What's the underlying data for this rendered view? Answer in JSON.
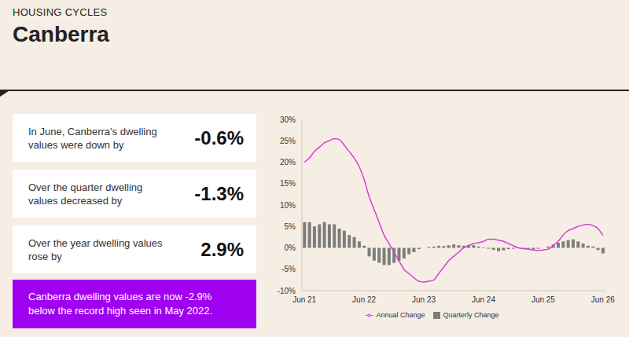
{
  "header": {
    "section": "HOUSING CYCLES",
    "title": "Canberra"
  },
  "stats": [
    {
      "label": "In June, Canberra's dwelling values were down by",
      "value": "-0.6%"
    },
    {
      "label": "Over the quarter dwelling values decreased by",
      "value": "-1.3%"
    },
    {
      "label": "Over the year dwelling values rose by",
      "value": "2.9%"
    }
  ],
  "callout": "Canberra dwelling values are now -2.9% below the record high seen in May 2022.",
  "chart_data": {
    "type": "bar",
    "categories": [
      "Jun 21",
      null,
      null,
      null,
      null,
      null,
      null,
      null,
      null,
      null,
      null,
      null,
      "Jun 22",
      null,
      null,
      null,
      null,
      null,
      null,
      null,
      null,
      null,
      null,
      null,
      "Jun 23",
      null,
      null,
      null,
      null,
      null,
      null,
      null,
      null,
      null,
      null,
      null,
      "Jun 24",
      null,
      null,
      null,
      null,
      null,
      null,
      null,
      null,
      null,
      null,
      null,
      "Jun 25",
      null,
      null,
      null,
      null,
      null,
      null,
      null,
      null,
      null,
      null,
      null,
      "Jun 26"
    ],
    "series": [
      {
        "name": "Quarterly Change",
        "type": "bar",
        "color": "#7d7d7d",
        "values": [
          6,
          6,
          5,
          5.5,
          6,
          5.5,
          5.5,
          4.5,
          4,
          3,
          2.5,
          1.5,
          0.5,
          -2,
          -3,
          -3.5,
          -4,
          -4,
          -3.5,
          -3,
          -2.5,
          -1.5,
          -1,
          -0.3,
          0,
          0.2,
          0.3,
          0.5,
          0.4,
          0.6,
          0.8,
          0.6,
          0.5,
          0.7,
          0.6,
          0.3,
          0.1,
          -0.2,
          -0.5,
          -0.8,
          -0.6,
          -0.3,
          -0.2,
          0.1,
          -0.2,
          -0.3,
          -0.4,
          -0.2,
          0,
          0.3,
          0.8,
          1.2,
          1.5,
          1.8,
          2,
          1.5,
          1,
          0.5,
          0.3,
          -0.5,
          -1.3
        ]
      },
      {
        "name": "Annual Change",
        "type": "line",
        "color": "#d63fd6",
        "values": [
          20,
          21,
          22.5,
          23.5,
          24.5,
          25,
          25.5,
          25.3,
          24,
          22.5,
          21,
          19,
          16,
          12,
          9,
          6,
          3,
          1,
          -1,
          -3,
          -5,
          -6,
          -7,
          -7.8,
          -8,
          -7.8,
          -7.5,
          -6,
          -4.5,
          -3,
          -2,
          -1,
          0,
          0.5,
          1,
          1.2,
          1.5,
          2,
          2,
          1.8,
          1.5,
          1,
          0.5,
          0,
          -0.2,
          -0.3,
          -0.5,
          -0.6,
          -0.5,
          -0.3,
          0.5,
          1.5,
          3,
          4,
          4.5,
          5,
          5.3,
          5.5,
          5.2,
          4.5,
          2.9
        ]
      }
    ],
    "ylim": [
      -10,
      30
    ],
    "yticks": [
      {
        "value": -10,
        "label": "-10%"
      },
      {
        "value": -5,
        "label": "-5%"
      },
      {
        "value": 0,
        "label": "0%"
      },
      {
        "value": 5,
        "label": "5%"
      },
      {
        "value": 10,
        "label": "10%"
      },
      {
        "value": 15,
        "label": "15%"
      },
      {
        "value": 20,
        "label": "20%"
      },
      {
        "value": 25,
        "label": "25%"
      },
      {
        "value": 30,
        "label": "30%"
      }
    ],
    "grid": false,
    "legend": "bottom"
  }
}
